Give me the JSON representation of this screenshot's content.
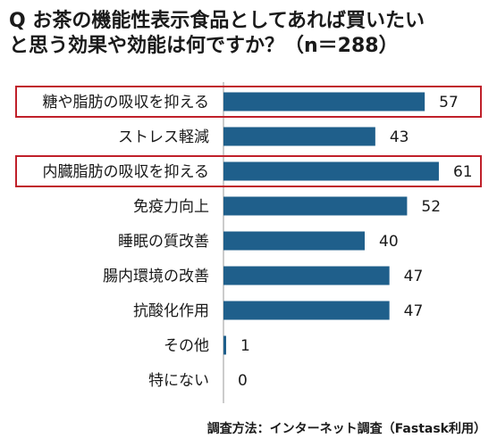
{
  "title": {
    "line1": "Q お茶の機能性表示食品としてあれば買いたい",
    "line2": "と思う効果や効能は何ですか？（n＝288）"
  },
  "footnote": "調査方法：インターネット調査（Fastask利用）",
  "colors": {
    "bar": "#1f5f8b",
    "highlight": "#c0202a",
    "axis": "#999999"
  },
  "chart_data": {
    "type": "bar",
    "orientation": "horizontal",
    "categories": [
      "糖や脂肪の吸収を抑える",
      "ストレス軽減",
      "内臓脂肪の吸収を抑える",
      "免疫力向上",
      "睡眠の質改善",
      "腸内環境の改善",
      "抗酸化作用",
      "その他",
      "特にない"
    ],
    "values": [
      57,
      43,
      61,
      52,
      40,
      47,
      47,
      1,
      0
    ],
    "highlighted": [
      "糖や脂肪の吸収を抑える",
      "内臓脂肪の吸収を抑える"
    ],
    "xlim": [
      0,
      65
    ],
    "grid": false,
    "data_labels": true
  }
}
